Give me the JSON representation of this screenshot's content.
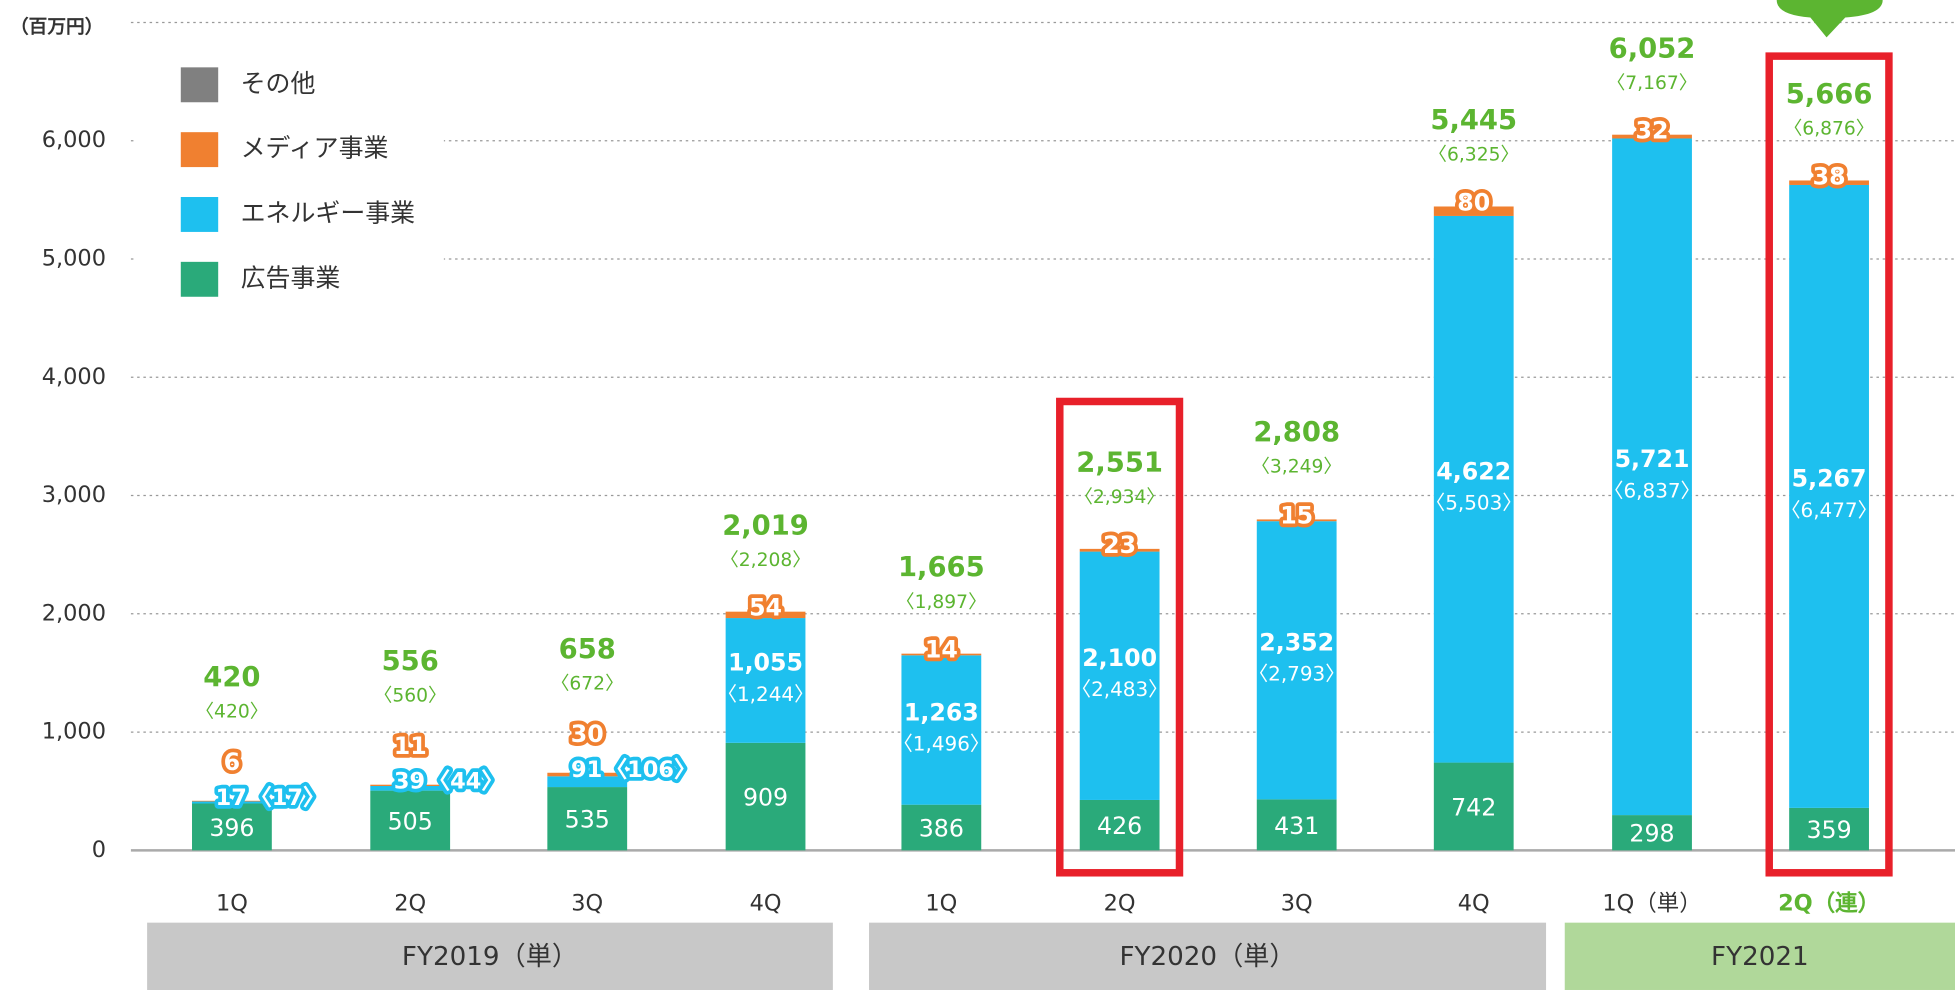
{
  "chart_data": {
    "type": "stacked_bar",
    "y_unit": "（百万円）",
    "categories": [
      "1Q",
      "2Q",
      "3Q",
      "4Q",
      "1Q",
      "2Q",
      "3Q",
      "4Q",
      "1Q（単）",
      "2Q（連）"
    ],
    "groups": [
      "FY2019（単）",
      "FY2020（単）",
      "FY2021"
    ],
    "series": [
      {
        "name": "広告事業",
        "color": "#2aaa7a",
        "values": [
          396,
          505,
          535,
          909,
          386,
          426,
          431,
          742,
          298,
          359
        ]
      },
      {
        "name": "エネルギー事業",
        "color": "#1ec0ef",
        "values": [
          17,
          39,
          91,
          1055,
          1263,
          2100,
          2352,
          4622,
          5721,
          5267
        ],
        "value_labels": [
          "17",
          "39",
          "91",
          "1,055",
          "1,263",
          "2,100",
          "2,352",
          "4,622",
          "5,721",
          "5,267"
        ]
      },
      {
        "name": "メディア事業",
        "color": "#f08030",
        "values": [
          6,
          11,
          30,
          54,
          14,
          23,
          15,
          80,
          32,
          38
        ]
      },
      {
        "name": "その他",
        "color": "#808080",
        "values": [
          null,
          null,
          null,
          null,
          null,
          null,
          null,
          null,
          null,
          null
        ]
      }
    ],
    "energy_secondary": {
      "values": [
        17,
        44,
        106,
        1244,
        1496,
        2483,
        2793,
        5503,
        6837,
        6477
      ],
      "value_labels": [
        "〈17〉",
        "〈44〉",
        "〈106〉",
        "〈1,244〉",
        "〈1,496〉",
        "〈2,483〉",
        "〈2,793〉",
        "〈5,503〉",
        "〈6,837〉",
        "〈6,477〉"
      ]
    },
    "totals": {
      "color": "#5cb531",
      "values": [
        420,
        556,
        658,
        2019,
        1665,
        2551,
        2808,
        5445,
        6052,
        5666
      ],
      "value_labels": [
        "420",
        "556",
        "658",
        "2,019",
        "1,665",
        "2,551",
        "2,808",
        "5,445",
        "6,052",
        "5,666"
      ]
    },
    "totals_secondary": {
      "values": [
        420,
        560,
        672,
        2208,
        1897,
        2934,
        3249,
        6325,
        7167,
        6876
      ],
      "value_labels": [
        "〈420〉",
        "〈560〉",
        "〈672〉",
        "〈2,208〉",
        "〈1,897〉",
        "〈2,934〉",
        "〈3,249〉",
        "〈6,325〉",
        "〈7,167〉",
        "〈6,876〉"
      ]
    },
    "ylim": [
      0,
      7000
    ],
    "yticks": [
      0,
      {
        "value": 1000,
        "label": "1,000"
      },
      {
        "value": 2000,
        "label": "2,000"
      },
      {
        "value": 3000,
        "label": "3,000"
      },
      {
        "value": 4000,
        "label": "4,000"
      },
      {
        "value": 5000,
        "label": "5,000"
      },
      {
        "value": 6000,
        "label": "6,000"
      }
    ],
    "grid": true,
    "legend": "upper left"
  }
}
